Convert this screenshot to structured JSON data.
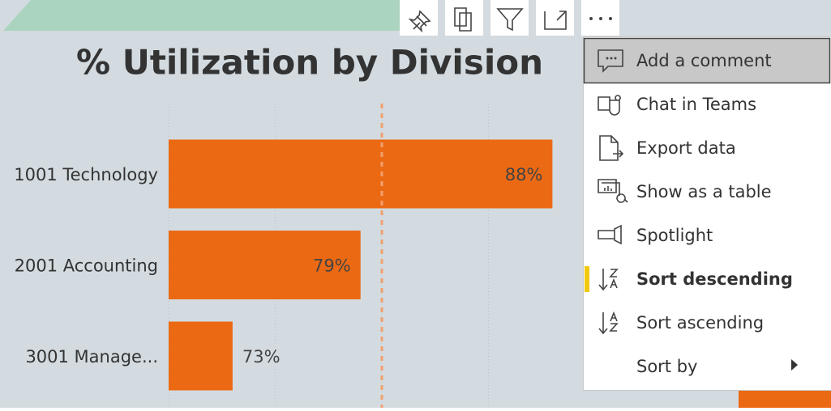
{
  "chart_data": {
    "type": "bar",
    "orientation": "horizontal",
    "title": "% Utilization by Division",
    "categories": [
      "1001 Technology",
      "2001 Accounting",
      "3001 Manage..."
    ],
    "values": [
      88,
      79,
      73
    ],
    "value_labels": [
      "88%",
      "79%",
      "73%"
    ],
    "color": "#ec6913",
    "xlim": [
      70,
      90
    ],
    "gridlines": [
      70,
      75,
      80,
      85
    ],
    "reference_line": 80,
    "reference_color": "#f0a070"
  },
  "menu": {
    "items": [
      "Add a comment",
      "Chat in Teams",
      "Export data",
      "Show as a table",
      "Spotlight",
      "Sort descending",
      "Sort ascending",
      "Sort by"
    ],
    "highlighted": 0,
    "active": 5
  }
}
